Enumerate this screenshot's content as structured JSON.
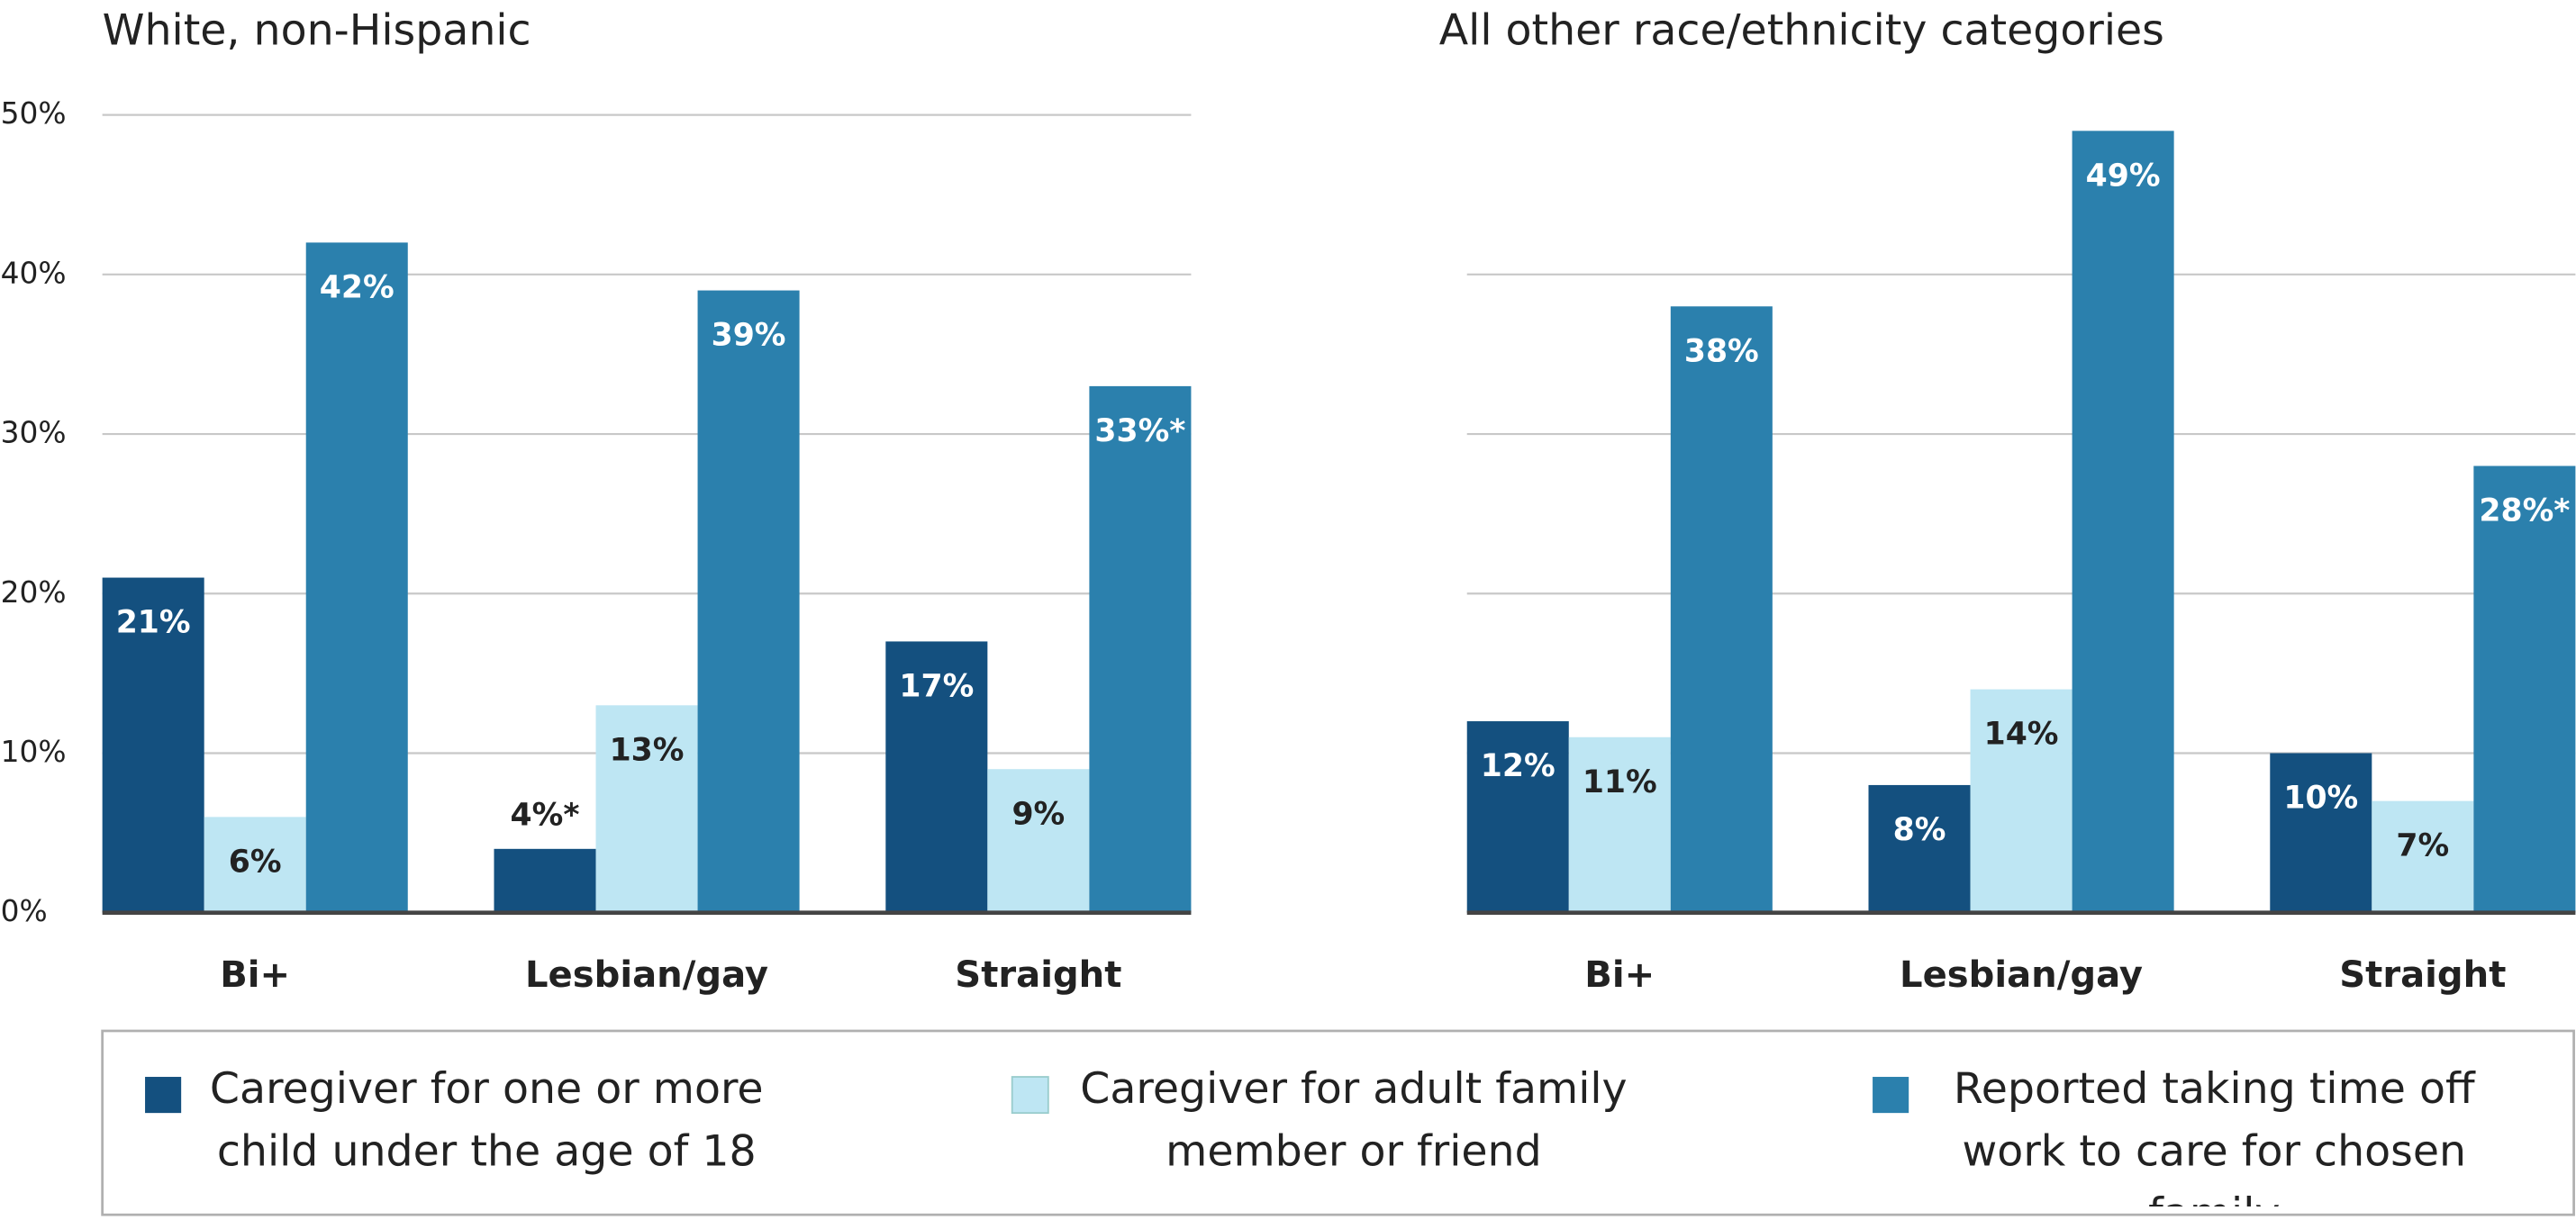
{
  "chart_data": [
    {
      "type": "bar",
      "title": "White, non-Hispanic",
      "categories": [
        "Bi+",
        "Lesbian/gay",
        "Straight"
      ],
      "series": [
        {
          "name": "Caregiver for one or more child under the age of 18",
          "color": "#14507f",
          "values": [
            21,
            4,
            17
          ],
          "value_labels": [
            "21%",
            "4%*",
            "17%"
          ]
        },
        {
          "name": "Caregiver for adult family member or friend",
          "color": "#bee6f3",
          "values": [
            6,
            13,
            9
          ],
          "value_labels": [
            "6%",
            "13%",
            "9%"
          ]
        },
        {
          "name": "Reported taking time off work to care for chosen family",
          "color": "#2b80ad",
          "values": [
            42,
            39,
            33
          ],
          "value_labels": [
            "42%",
            "39%",
            "33%*"
          ]
        }
      ],
      "ylim": [
        0,
        50
      ],
      "yticks": [
        {
          "value": 0,
          "label": "0%"
        },
        {
          "value": 10,
          "label": "10%"
        },
        {
          "value": 20,
          "label": "20%"
        },
        {
          "value": 30,
          "label": "30%"
        },
        {
          "value": 40,
          "label": "40%"
        },
        {
          "value": 50,
          "label": "50%"
        }
      ],
      "grid": true
    },
    {
      "type": "bar",
      "title": "All other race/ethnicity categories",
      "categories": [
        "Bi+",
        "Lesbian/gay",
        "Straight"
      ],
      "series": [
        {
          "color": "#14507f",
          "values": [
            12,
            8,
            10
          ],
          "value_labels": [
            "12%",
            "8%",
            "10%"
          ]
        },
        {
          "color": "#bee6f3",
          "values": [
            11,
            14,
            7
          ],
          "value_labels": [
            "11%",
            "14%",
            "7%"
          ]
        },
        {
          "color": "#2b80ad",
          "values": [
            38,
            49,
            28
          ],
          "value_labels": [
            "38%",
            "49%",
            "28%*"
          ]
        }
      ],
      "ylim": [
        0,
        50
      ],
      "yticks": [
        0,
        10,
        20,
        30,
        40
      ],
      "grid": true
    }
  ]
}
